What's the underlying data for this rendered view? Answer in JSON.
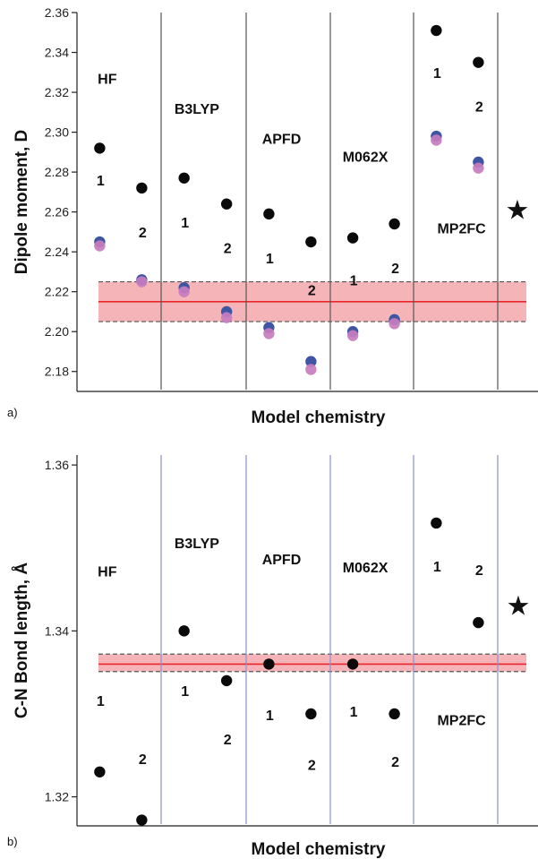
{
  "chart_data": [
    {
      "type": "scatter",
      "panel_label": "a)",
      "xlabel": "Model chemistry",
      "ylabel": "Dipole moment, D",
      "ylim": [
        2.17,
        2.36
      ],
      "ytick_values": [
        2.18,
        2.2,
        2.22,
        2.24,
        2.26,
        2.28,
        2.3,
        2.32,
        2.34,
        2.36
      ],
      "ytick_labels": [
        "2.18",
        "2.20",
        "2.22",
        "2.24",
        "2.26",
        "2.28",
        "2.30",
        "2.32",
        "2.34",
        "2.36"
      ],
      "divider_color": "#555555",
      "methods": [
        {
          "name": "HF",
          "label_y": 2.327
        },
        {
          "name": "B3LYP",
          "label_y": 2.312
        },
        {
          "name": "APFD",
          "label_y": 2.297
        },
        {
          "name": "M062X",
          "label_y": 2.288
        },
        {
          "name": "MP2FC",
          "label_y": 2.252
        }
      ],
      "points": [
        {
          "basis": "1",
          "method": "HF",
          "black": 2.292,
          "blue": 2.245,
          "pink": 2.243,
          "label_y": 2.276
        },
        {
          "basis": "2",
          "method": "HF",
          "black": 2.272,
          "blue": 2.226,
          "pink": 2.225,
          "label_y": 2.25
        },
        {
          "basis": "1",
          "method": "B3LYP",
          "black": 2.277,
          "blue": 2.222,
          "pink": 2.22,
          "label_y": 2.255
        },
        {
          "basis": "2",
          "method": "B3LYP",
          "black": 2.264,
          "blue": 2.21,
          "pink": 2.207,
          "label_y": 2.242
        },
        {
          "basis": "1",
          "method": "APFD",
          "black": 2.259,
          "blue": 2.202,
          "pink": 2.199,
          "label_y": 2.237
        },
        {
          "basis": "2",
          "method": "APFD",
          "black": 2.245,
          "blue": 2.185,
          "pink": 2.181,
          "label_y": 2.221
        },
        {
          "basis": "1",
          "method": "M062X",
          "black": 2.247,
          "blue": 2.2,
          "pink": 2.198,
          "label_y": 2.226
        },
        {
          "basis": "2",
          "method": "M062X",
          "black": 2.254,
          "blue": 2.206,
          "pink": 2.204,
          "label_y": 2.232
        },
        {
          "basis": "1",
          "method": "MP2FC",
          "black": 2.351,
          "blue": 2.298,
          "pink": 2.296,
          "label_y": 2.33
        },
        {
          "basis": "2",
          "method": "MP2FC",
          "black": 2.335,
          "blue": 2.285,
          "pink": 2.282,
          "label_y": 2.313
        }
      ],
      "star": {
        "y": 2.261
      },
      "reference": {
        "value": 2.215,
        "lower": 2.205,
        "upper": 2.225
      },
      "colors": {
        "black": "#0a0a0a",
        "blue": "#3d55a3",
        "pink": "#c77dbf",
        "band": "#f5b5b8",
        "ref_line": "#e8262c",
        "band_edge": "#555555"
      }
    },
    {
      "type": "scatter",
      "panel_label": "b)",
      "xlabel": "Model chemistry",
      "ylabel": "C-N Bond length, Å",
      "ylim": [
        1.3165,
        1.3612
      ],
      "ytick_values": [
        1.32,
        1.34,
        1.36
      ],
      "ytick_labels": [
        "1.32",
        "1.34",
        "1.36"
      ],
      "divider_color": "#8a8fd0",
      "methods": [
        {
          "name": "HF",
          "label_y": 1.3472
        },
        {
          "name": "B3LYP",
          "label_y": 1.3506
        },
        {
          "name": "APFD",
          "label_y": 1.3487
        },
        {
          "name": "M062X",
          "label_y": 1.3477
        },
        {
          "name": "MP2FC",
          "label_y": 1.3293
        }
      ],
      "points": [
        {
          "basis": "1",
          "method": "HF",
          "black": 1.323,
          "label_y": 1.3316
        },
        {
          "basis": "2",
          "method": "HF",
          "black": 1.3172,
          "label_y": 1.3246
        },
        {
          "basis": "1",
          "method": "B3LYP",
          "black": 1.34,
          "label_y": 1.3328
        },
        {
          "basis": "2",
          "method": "B3LYP",
          "black": 1.334,
          "label_y": 1.327
        },
        {
          "basis": "1",
          "method": "APFD",
          "black": 1.336,
          "label_y": 1.3299
        },
        {
          "basis": "2",
          "method": "APFD",
          "black": 1.33,
          "label_y": 1.3239
        },
        {
          "basis": "1",
          "method": "M062X",
          "black": 1.336,
          "label_y": 1.3303
        },
        {
          "basis": "2",
          "method": "M062X",
          "black": 1.33,
          "label_y": 1.3243
        },
        {
          "basis": "1",
          "method": "MP2FC",
          "black": 1.353,
          "label_y": 1.3478
        },
        {
          "basis": "2",
          "method": "MP2FC",
          "black": 1.341,
          "label_y": 1.3474
        }
      ],
      "star": {
        "y": 1.343
      },
      "reference": {
        "value": 1.336,
        "lower": 1.3351,
        "upper": 1.3372
      },
      "colors": {
        "black": "#0a0a0a",
        "band": "#f5b5b8",
        "ref_line": "#e8262c",
        "band_edge": "#555555"
      }
    }
  ]
}
